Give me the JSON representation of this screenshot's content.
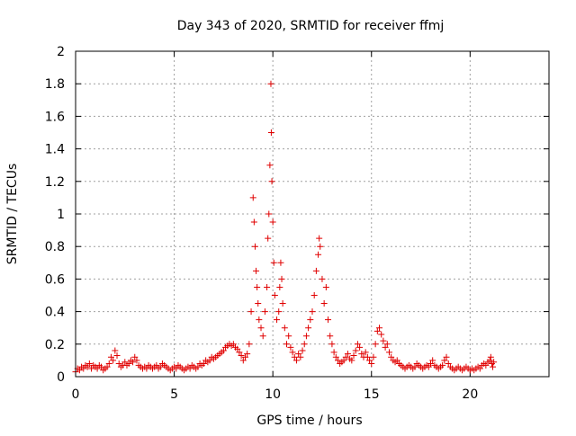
{
  "chart_data": {
    "type": "scatter",
    "title": "Day 343 of 2020, SRMTID for receiver ffmj",
    "xlabel": "GPS time / hours",
    "ylabel": "SRMTID / TECUs",
    "xlim": [
      0,
      24
    ],
    "ylim": [
      0,
      2
    ],
    "xticks": [
      0,
      5,
      10,
      15,
      20
    ],
    "yticks": [
      0,
      0.2,
      0.4,
      0.6,
      0.8,
      1,
      1.2,
      1.4,
      1.6,
      1.8,
      2
    ],
    "xtick_labels": [
      "0",
      "5",
      "10",
      "15",
      "20"
    ],
    "ytick_labels": [
      "0",
      "0.2",
      "0.4",
      "0.6",
      "0.8",
      "1",
      "1.2",
      "1.4",
      "1.6",
      "1.8",
      "2"
    ],
    "grid": true,
    "marker": "plus",
    "color": "#e00000",
    "series": [
      {
        "name": "SRMTID",
        "points": [
          [
            0.0,
            0.03
          ],
          [
            0.1,
            0.05
          ],
          [
            0.2,
            0.04
          ],
          [
            0.3,
            0.06
          ],
          [
            0.4,
            0.05
          ],
          [
            0.5,
            0.07
          ],
          [
            0.6,
            0.06
          ],
          [
            0.7,
            0.08
          ],
          [
            0.8,
            0.05
          ],
          [
            0.9,
            0.07
          ],
          [
            1.0,
            0.06
          ],
          [
            1.1,
            0.05
          ],
          [
            1.2,
            0.07
          ],
          [
            1.3,
            0.06
          ],
          [
            1.4,
            0.04
          ],
          [
            1.5,
            0.05
          ],
          [
            1.6,
            0.06
          ],
          [
            1.7,
            0.08
          ],
          [
            1.8,
            0.12
          ],
          [
            1.9,
            0.1
          ],
          [
            2.0,
            0.16
          ],
          [
            2.1,
            0.13
          ],
          [
            2.2,
            0.08
          ],
          [
            2.3,
            0.06
          ],
          [
            2.4,
            0.07
          ],
          [
            2.5,
            0.09
          ],
          [
            2.6,
            0.07
          ],
          [
            2.7,
            0.08
          ],
          [
            2.8,
            0.1
          ],
          [
            2.9,
            0.09
          ],
          [
            3.0,
            0.12
          ],
          [
            3.1,
            0.1
          ],
          [
            3.2,
            0.07
          ],
          [
            3.3,
            0.06
          ],
          [
            3.4,
            0.05
          ],
          [
            3.5,
            0.06
          ],
          [
            3.6,
            0.05
          ],
          [
            3.7,
            0.07
          ],
          [
            3.8,
            0.06
          ],
          [
            3.9,
            0.05
          ],
          [
            4.0,
            0.06
          ],
          [
            4.1,
            0.07
          ],
          [
            4.2,
            0.05
          ],
          [
            4.3,
            0.06
          ],
          [
            4.4,
            0.08
          ],
          [
            4.5,
            0.07
          ],
          [
            4.6,
            0.06
          ],
          [
            4.7,
            0.05
          ],
          [
            4.8,
            0.04
          ],
          [
            4.9,
            0.05
          ],
          [
            5.0,
            0.06
          ],
          [
            5.1,
            0.05
          ],
          [
            5.2,
            0.07
          ],
          [
            5.3,
            0.06
          ],
          [
            5.4,
            0.05
          ],
          [
            5.5,
            0.04
          ],
          [
            5.6,
            0.05
          ],
          [
            5.7,
            0.06
          ],
          [
            5.8,
            0.05
          ],
          [
            5.9,
            0.07
          ],
          [
            6.0,
            0.06
          ],
          [
            6.1,
            0.05
          ],
          [
            6.2,
            0.06
          ],
          [
            6.3,
            0.08
          ],
          [
            6.4,
            0.07
          ],
          [
            6.5,
            0.08
          ],
          [
            6.6,
            0.1
          ],
          [
            6.7,
            0.09
          ],
          [
            6.8,
            0.1
          ],
          [
            6.9,
            0.12
          ],
          [
            7.0,
            0.11
          ],
          [
            7.1,
            0.12
          ],
          [
            7.2,
            0.13
          ],
          [
            7.3,
            0.14
          ],
          [
            7.4,
            0.15
          ],
          [
            7.5,
            0.16
          ],
          [
            7.6,
            0.18
          ],
          [
            7.7,
            0.19
          ],
          [
            7.8,
            0.2
          ],
          [
            7.9,
            0.19
          ],
          [
            8.0,
            0.2
          ],
          [
            8.1,
            0.18
          ],
          [
            8.2,
            0.17
          ],
          [
            8.3,
            0.15
          ],
          [
            8.4,
            0.13
          ],
          [
            8.5,
            0.1
          ],
          [
            8.6,
            0.12
          ],
          [
            8.7,
            0.14
          ],
          [
            8.8,
            0.2
          ],
          [
            8.9,
            0.4
          ],
          [
            9.0,
            1.1
          ],
          [
            9.05,
            0.95
          ],
          [
            9.1,
            0.8
          ],
          [
            9.15,
            0.65
          ],
          [
            9.2,
            0.55
          ],
          [
            9.25,
            0.45
          ],
          [
            9.3,
            0.35
          ],
          [
            9.4,
            0.3
          ],
          [
            9.5,
            0.25
          ],
          [
            9.6,
            0.4
          ],
          [
            9.7,
            0.55
          ],
          [
            9.75,
            0.85
          ],
          [
            9.8,
            1.0
          ],
          [
            9.85,
            1.3
          ],
          [
            9.9,
            1.8
          ],
          [
            9.92,
            1.5
          ],
          [
            9.95,
            1.2
          ],
          [
            10.0,
            0.95
          ],
          [
            10.05,
            0.7
          ],
          [
            10.1,
            0.5
          ],
          [
            10.2,
            0.35
          ],
          [
            10.3,
            0.4
          ],
          [
            10.35,
            0.55
          ],
          [
            10.4,
            0.7
          ],
          [
            10.45,
            0.6
          ],
          [
            10.5,
            0.45
          ],
          [
            10.6,
            0.3
          ],
          [
            10.7,
            0.2
          ],
          [
            10.8,
            0.25
          ],
          [
            10.9,
            0.18
          ],
          [
            11.0,
            0.15
          ],
          [
            11.1,
            0.12
          ],
          [
            11.2,
            0.1
          ],
          [
            11.3,
            0.14
          ],
          [
            11.4,
            0.12
          ],
          [
            11.5,
            0.16
          ],
          [
            11.6,
            0.2
          ],
          [
            11.7,
            0.25
          ],
          [
            11.8,
            0.3
          ],
          [
            11.9,
            0.35
          ],
          [
            12.0,
            0.4
          ],
          [
            12.1,
            0.5
          ],
          [
            12.2,
            0.65
          ],
          [
            12.3,
            0.75
          ],
          [
            12.35,
            0.85
          ],
          [
            12.4,
            0.8
          ],
          [
            12.5,
            0.6
          ],
          [
            12.6,
            0.45
          ],
          [
            12.7,
            0.55
          ],
          [
            12.8,
            0.35
          ],
          [
            12.9,
            0.25
          ],
          [
            13.0,
            0.2
          ],
          [
            13.1,
            0.15
          ],
          [
            13.2,
            0.12
          ],
          [
            13.3,
            0.1
          ],
          [
            13.4,
            0.08
          ],
          [
            13.5,
            0.09
          ],
          [
            13.6,
            0.1
          ],
          [
            13.7,
            0.12
          ],
          [
            13.8,
            0.14
          ],
          [
            13.9,
            0.11
          ],
          [
            14.0,
            0.1
          ],
          [
            14.1,
            0.13
          ],
          [
            14.2,
            0.16
          ],
          [
            14.3,
            0.2
          ],
          [
            14.4,
            0.18
          ],
          [
            14.5,
            0.14
          ],
          [
            14.6,
            0.12
          ],
          [
            14.7,
            0.15
          ],
          [
            14.8,
            0.12
          ],
          [
            14.9,
            0.1
          ],
          [
            15.0,
            0.08
          ],
          [
            15.1,
            0.12
          ],
          [
            15.2,
            0.2
          ],
          [
            15.3,
            0.28
          ],
          [
            15.4,
            0.3
          ],
          [
            15.5,
            0.26
          ],
          [
            15.6,
            0.22
          ],
          [
            15.7,
            0.18
          ],
          [
            15.8,
            0.2
          ],
          [
            15.9,
            0.15
          ],
          [
            16.0,
            0.12
          ],
          [
            16.1,
            0.1
          ],
          [
            16.2,
            0.09
          ],
          [
            16.3,
            0.1
          ],
          [
            16.4,
            0.08
          ],
          [
            16.5,
            0.07
          ],
          [
            16.6,
            0.06
          ],
          [
            16.7,
            0.05
          ],
          [
            16.8,
            0.06
          ],
          [
            16.9,
            0.07
          ],
          [
            17.0,
            0.06
          ],
          [
            17.1,
            0.05
          ],
          [
            17.2,
            0.06
          ],
          [
            17.3,
            0.08
          ],
          [
            17.4,
            0.07
          ],
          [
            17.5,
            0.06
          ],
          [
            17.6,
            0.05
          ],
          [
            17.7,
            0.06
          ],
          [
            17.8,
            0.07
          ],
          [
            17.9,
            0.06
          ],
          [
            18.0,
            0.08
          ],
          [
            18.1,
            0.1
          ],
          [
            18.2,
            0.07
          ],
          [
            18.3,
            0.06
          ],
          [
            18.4,
            0.05
          ],
          [
            18.5,
            0.06
          ],
          [
            18.6,
            0.07
          ],
          [
            18.7,
            0.1
          ],
          [
            18.8,
            0.12
          ],
          [
            18.9,
            0.08
          ],
          [
            19.0,
            0.06
          ],
          [
            19.1,
            0.05
          ],
          [
            19.2,
            0.04
          ],
          [
            19.3,
            0.05
          ],
          [
            19.4,
            0.06
          ],
          [
            19.5,
            0.05
          ],
          [
            19.6,
            0.04
          ],
          [
            19.7,
            0.05
          ],
          [
            19.8,
            0.06
          ],
          [
            19.9,
            0.05
          ],
          [
            20.0,
            0.04
          ],
          [
            20.1,
            0.05
          ],
          [
            20.2,
            0.04
          ],
          [
            20.3,
            0.05
          ],
          [
            20.4,
            0.06
          ],
          [
            20.5,
            0.05
          ],
          [
            20.6,
            0.07
          ],
          [
            20.7,
            0.08
          ],
          [
            20.8,
            0.07
          ],
          [
            20.9,
            0.09
          ],
          [
            21.0,
            0.1
          ],
          [
            21.05,
            0.12
          ],
          [
            21.1,
            0.08
          ],
          [
            21.15,
            0.06
          ],
          [
            21.2,
            0.09
          ]
        ]
      }
    ]
  }
}
